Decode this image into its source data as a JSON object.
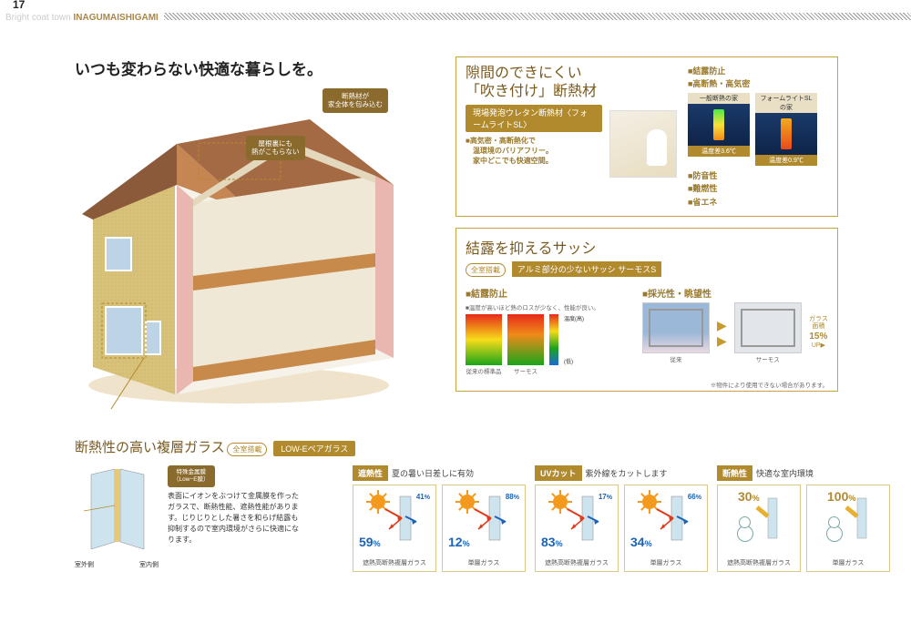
{
  "header": {
    "page_number": "17",
    "tagline_prefix": "Bright coat town ",
    "tagline_accent": "INAGUMAISHIGAMI"
  },
  "main": {
    "headline": "いつも変わらない快適な暮らしを。",
    "callout_top": "断熱材が\n家全体を包み込む",
    "callout_roof": "屋根裏にも\n熱がこもらない",
    "callout_mid": "特殊金属膜\n（Low−E膜）"
  },
  "panelA": {
    "title_line1": "隙間のできにくい",
    "title_line2": "「吹き付け」断熱材",
    "pill": "現場発泡ウレタン断熱材〈フォームライトSL〉",
    "lead": "■高気密・高断熱化で\n　温環境のバリアフリー。\n　家中どこでも快適空間。",
    "thermal_labels": [
      "一般断熱の家",
      "フォームライトSLの家"
    ],
    "temps": [
      "温度差3.6℃",
      "温度差0.9℃"
    ],
    "bullets_top": [
      "■結露防止",
      "■高断熱・高気密"
    ],
    "bullets_bottom": [
      "■防音性",
      "■難燃性",
      "■省エネ"
    ]
  },
  "panelB": {
    "title": "結露を抑えるサッシ",
    "chip": "全室搭載",
    "gold_line": "アルミ部分の少ないサッシ サーモスS",
    "sub1": "■結露防止",
    "sub2": "■採光性・眺望性",
    "note1": "■温度が高いほど熱のロスが少なく、性能が良い。",
    "heat_caps": [
      "従来の標準品",
      "サーモス"
    ],
    "photo_caps": [
      "従来",
      "サーモス"
    ],
    "glass_up_label": "ガラス面積",
    "glass_up_value": "15%",
    "glass_up_suffix": "UP▶",
    "disclaimer": "※物件により使用できない場合があります。"
  },
  "bottom": {
    "title": "断熱性の高い複層ガラス",
    "chip": "全室搭載",
    "pill": "LOW-Eペアガラス",
    "desc": "表面にイオンをぶつけて金属膜を作ったガラスで、断熱性能、遮熱性能があります。じりじりとした暑さを和らげ結露も抑制するので室内環境がさらに快適になります。",
    "diag_label": "特殊金属膜\n（Low−E膜）",
    "side_out": "室外側",
    "side_in": "室内側",
    "columns": [
      {
        "tag": "遮熱性",
        "sub": "夏の暑い日差しに有効",
        "cells": [
          {
            "pct_main": "59",
            "pct_small": "41",
            "cap": "遮熱高断熱複層ガラス",
            "color": "blue"
          },
          {
            "pct_main": "12",
            "pct_small": "88",
            "cap": "単層ガラス",
            "color": "blue"
          }
        ]
      },
      {
        "tag": "UVカット",
        "sub": "紫外線をカットします",
        "cells": [
          {
            "pct_main": "83",
            "pct_small": "17",
            "cap": "遮熱高断熱複層ガラス",
            "color": "blue"
          },
          {
            "pct_main": "34",
            "pct_small": "66",
            "cap": "単層ガラス",
            "color": "blue"
          }
        ]
      },
      {
        "tag": "断熱性",
        "sub": "快適な室内環境",
        "cells": [
          {
            "pct_main": "30",
            "cap": "遮熱高断熱複層ガラス",
            "color": "gold",
            "snow": true
          },
          {
            "pct_main": "100",
            "cap": "単層ガラス",
            "color": "gold",
            "snow": true
          }
        ]
      }
    ]
  },
  "colors": {
    "gold": "#b28a2e",
    "gold_dark": "#7a5a1e",
    "blue": "#1a63b8",
    "border": "#c9a53f"
  }
}
